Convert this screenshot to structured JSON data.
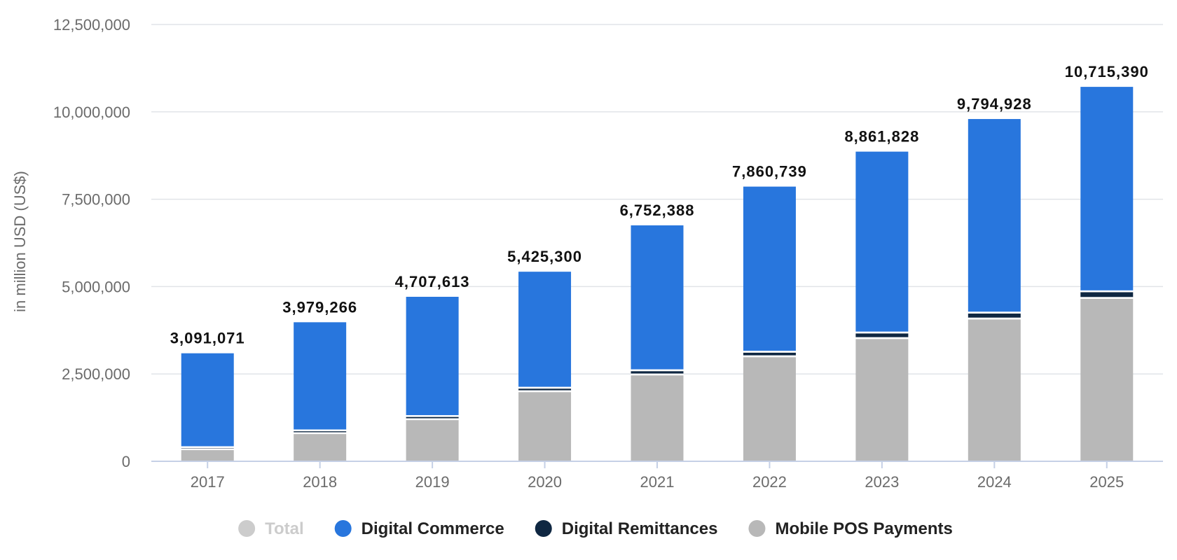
{
  "chart_data": {
    "type": "bar",
    "stacked": true,
    "title": "",
    "xlabel": "",
    "ylabel": "in million USD (US$)",
    "ylim": [
      0,
      12500000
    ],
    "yticks": [
      0,
      2500000,
      5000000,
      7500000,
      10000000,
      12500000
    ],
    "ytick_labels": [
      "0",
      "2,500,000",
      "5,000,000",
      "7,500,000",
      "10,000,000",
      "12,500,000"
    ],
    "categories": [
      "2017",
      "2018",
      "2019",
      "2020",
      "2021",
      "2022",
      "2023",
      "2024",
      "2025"
    ],
    "totals": [
      3091071,
      3979266,
      4707613,
      5425300,
      6752388,
      7860739,
      8861828,
      9794928,
      10715390
    ],
    "total_labels": [
      "3,091,071",
      "3,979,266",
      "4,707,613",
      "5,425,300",
      "6,752,388",
      "7,860,739",
      "8,861,828",
      "9,794,928",
      "10,715,390"
    ],
    "series": [
      {
        "name": "Mobile POS Payments",
        "color": "#b8b8b8",
        "values": [
          320000,
          780000,
          1180000,
          1980000,
          2460000,
          2980000,
          3500000,
          4060000,
          4650000
        ]
      },
      {
        "name": "Digital Remittances",
        "color": "#0f2742",
        "values": [
          60000,
          80000,
          90000,
          100000,
          120000,
          130000,
          160000,
          170000,
          190000
        ]
      },
      {
        "name": "Digital Commerce",
        "color": "#2876dd",
        "values": [
          2711071,
          3119266,
          3437613,
          3345300,
          4172388,
          4750739,
          5201828,
          5564928,
          5875390
        ]
      }
    ],
    "grid": true,
    "legend": {
      "placement": "bottom-center",
      "items": [
        {
          "name": "Total",
          "color": "#cccccc",
          "text_color": "#cccccc"
        },
        {
          "name": "Digital Commerce",
          "color": "#2876dd",
          "text_color": "#222222"
        },
        {
          "name": "Digital Remittances",
          "color": "#0f2742",
          "text_color": "#222222"
        },
        {
          "name": "Mobile POS Payments",
          "color": "#b8b8b8",
          "text_color": "#222222"
        }
      ]
    }
  }
}
